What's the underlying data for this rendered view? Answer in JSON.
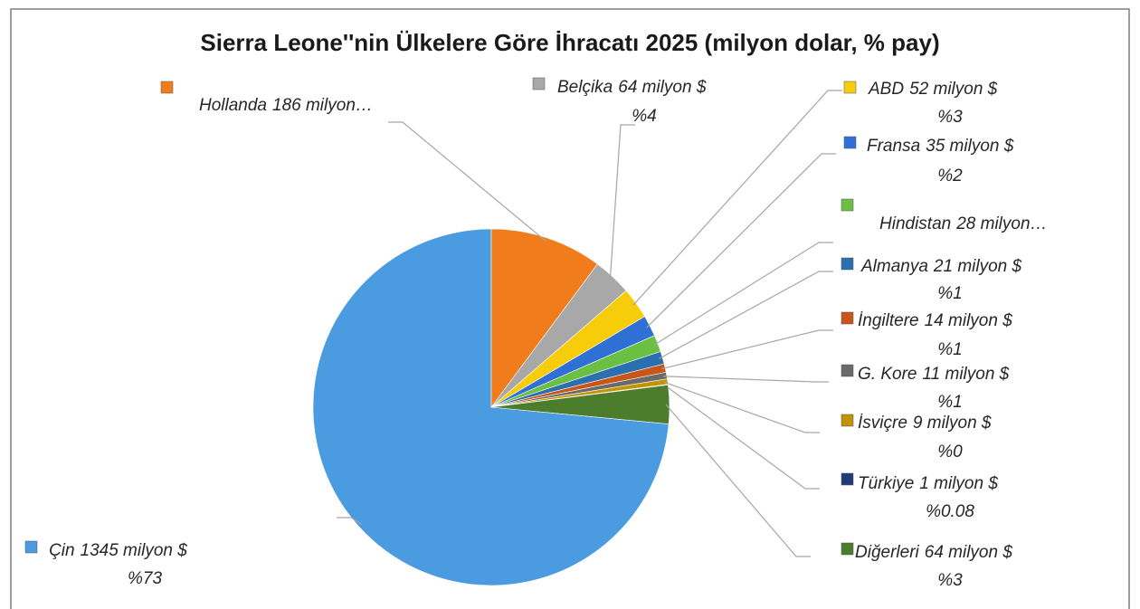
{
  "chart_data": {
    "type": "pie",
    "title": "Sierra Leone''nin Ülkelere Göre İhracatı 2025 (milyon dolar, % pay)",
    "categories": [
      "Çin",
      "Hollanda",
      "Belçika",
      "ABD",
      "Fransa",
      "Hindistan",
      "Almanya",
      "İngiltere",
      "G. Kore",
      "İsviçre",
      "Türkiye",
      "Diğerleri"
    ],
    "values": [
      1345,
      186,
      64,
      52,
      35,
      28,
      21,
      14,
      11,
      9,
      1,
      64
    ],
    "value_labels": [
      "1345 milyon $",
      "186 milyon…",
      "64 milyon $",
      "52 milyon $",
      "35 milyon $",
      "28 milyon…",
      "21 milyon $",
      "14 milyon $",
      "11 milyon $",
      "9 milyon $",
      "1 milyon $",
      "64 milyon $"
    ],
    "percent_labels": [
      "%73",
      null,
      "%4",
      "%3",
      "%2",
      null,
      "%1",
      "%1",
      "%1",
      "%0",
      "%0.08",
      "%3"
    ],
    "colors": [
      "#4a9be0",
      "#f07c1b",
      "#a8a8a8",
      "#f7cc0a",
      "#2f6fd6",
      "#69c043",
      "#2b6fae",
      "#c8561a",
      "#6a6a6a",
      "#c29400",
      "#1f3b78",
      "#4b7d2c"
    ]
  }
}
